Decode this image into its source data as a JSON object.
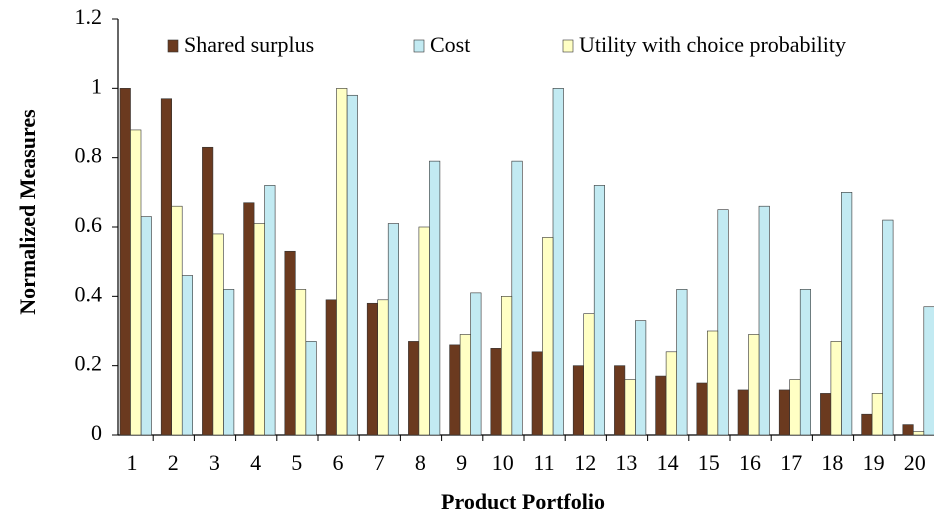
{
  "chart_data": {
    "type": "bar",
    "xlabel": "Product Portfolio",
    "ylabel": "Normalized Measures",
    "categories": [
      "1",
      "2",
      "3",
      "4",
      "5",
      "6",
      "7",
      "8",
      "9",
      "10",
      "11",
      "12",
      "13",
      "14",
      "15",
      "16",
      "17",
      "18",
      "19",
      "20"
    ],
    "series": [
      {
        "name": "Shared surplus",
        "color": "#6b3a1f",
        "values": [
          1.0,
          0.97,
          0.83,
          0.67,
          0.53,
          0.39,
          0.38,
          0.27,
          0.26,
          0.25,
          0.24,
          0.2,
          0.2,
          0.17,
          0.15,
          0.13,
          0.13,
          0.12,
          0.06,
          0.03
        ]
      },
      {
        "name": "Cost",
        "color": "#c2eaf2",
        "values": [
          0.63,
          0.46,
          0.42,
          0.72,
          0.27,
          0.98,
          0.61,
          0.79,
          0.41,
          0.79,
          1.0,
          0.72,
          0.33,
          0.42,
          0.65,
          0.66,
          0.42,
          0.7,
          0.62,
          0.37
        ]
      },
      {
        "name": "Utility with choice probability",
        "color": "#ffffc4",
        "values": [
          0.88,
          0.66,
          0.58,
          0.61,
          0.42,
          1.0,
          0.39,
          0.6,
          0.29,
          0.4,
          0.57,
          0.35,
          0.16,
          0.24,
          0.3,
          0.29,
          0.16,
          0.27,
          0.12,
          0.01
        ]
      }
    ],
    "ylim": [
      0,
      1.2
    ],
    "yticks": [
      0,
      0.2,
      0.4,
      0.6,
      0.8,
      1,
      1.2
    ],
    "grid": false,
    "legend": "top"
  }
}
